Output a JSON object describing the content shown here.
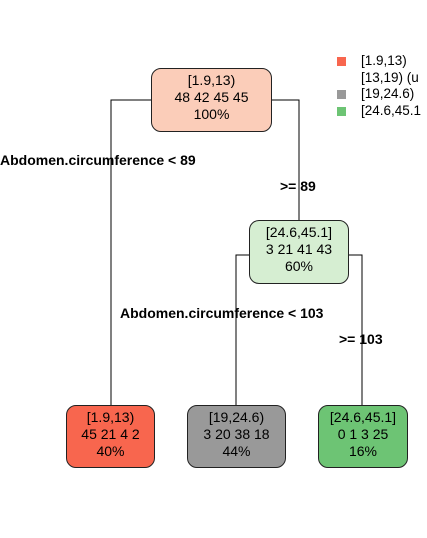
{
  "colors": {
    "class_1": "#F8664E",
    "class_2": "#FFFFFF",
    "class_3": "#999999",
    "class_4": "#6DC474",
    "root_fill": "#FBCDB9",
    "node2_fill": "#D6EED2"
  },
  "legend": [
    {
      "label": "[1.9,13)",
      "color": "#F8664E"
    },
    {
      "label": "[13,19) (u",
      "color": "#FFFFFF"
    },
    {
      "label": "[19,24.6)",
      "color": "#999999"
    },
    {
      "label": "[24.6,45.1",
      "color": "#6DC474"
    }
  ],
  "nodes": {
    "root": {
      "class": "[1.9,13)",
      "counts": "48  42  45  45",
      "percent": "100%"
    },
    "right_inner": {
      "class": "[24.6,45.1]",
      "counts": "3  21  41  43",
      "percent": "60%"
    },
    "leaf_1": {
      "class": "[1.9,13)",
      "counts": "45  21  4  2",
      "percent": "40%"
    },
    "leaf_2": {
      "class": "[19,24.6)",
      "counts": "3  20  38  18",
      "percent": "44%"
    },
    "leaf_3": {
      "class": "[24.6,45.1]",
      "counts": "0  1  3  25",
      "percent": "16%"
    }
  },
  "splits": {
    "root_left": "Abdomen.circumference < 89",
    "root_right": ">= 89",
    "inner_left": "Abdomen.circumference < 103",
    "inner_right": ">= 103"
  }
}
